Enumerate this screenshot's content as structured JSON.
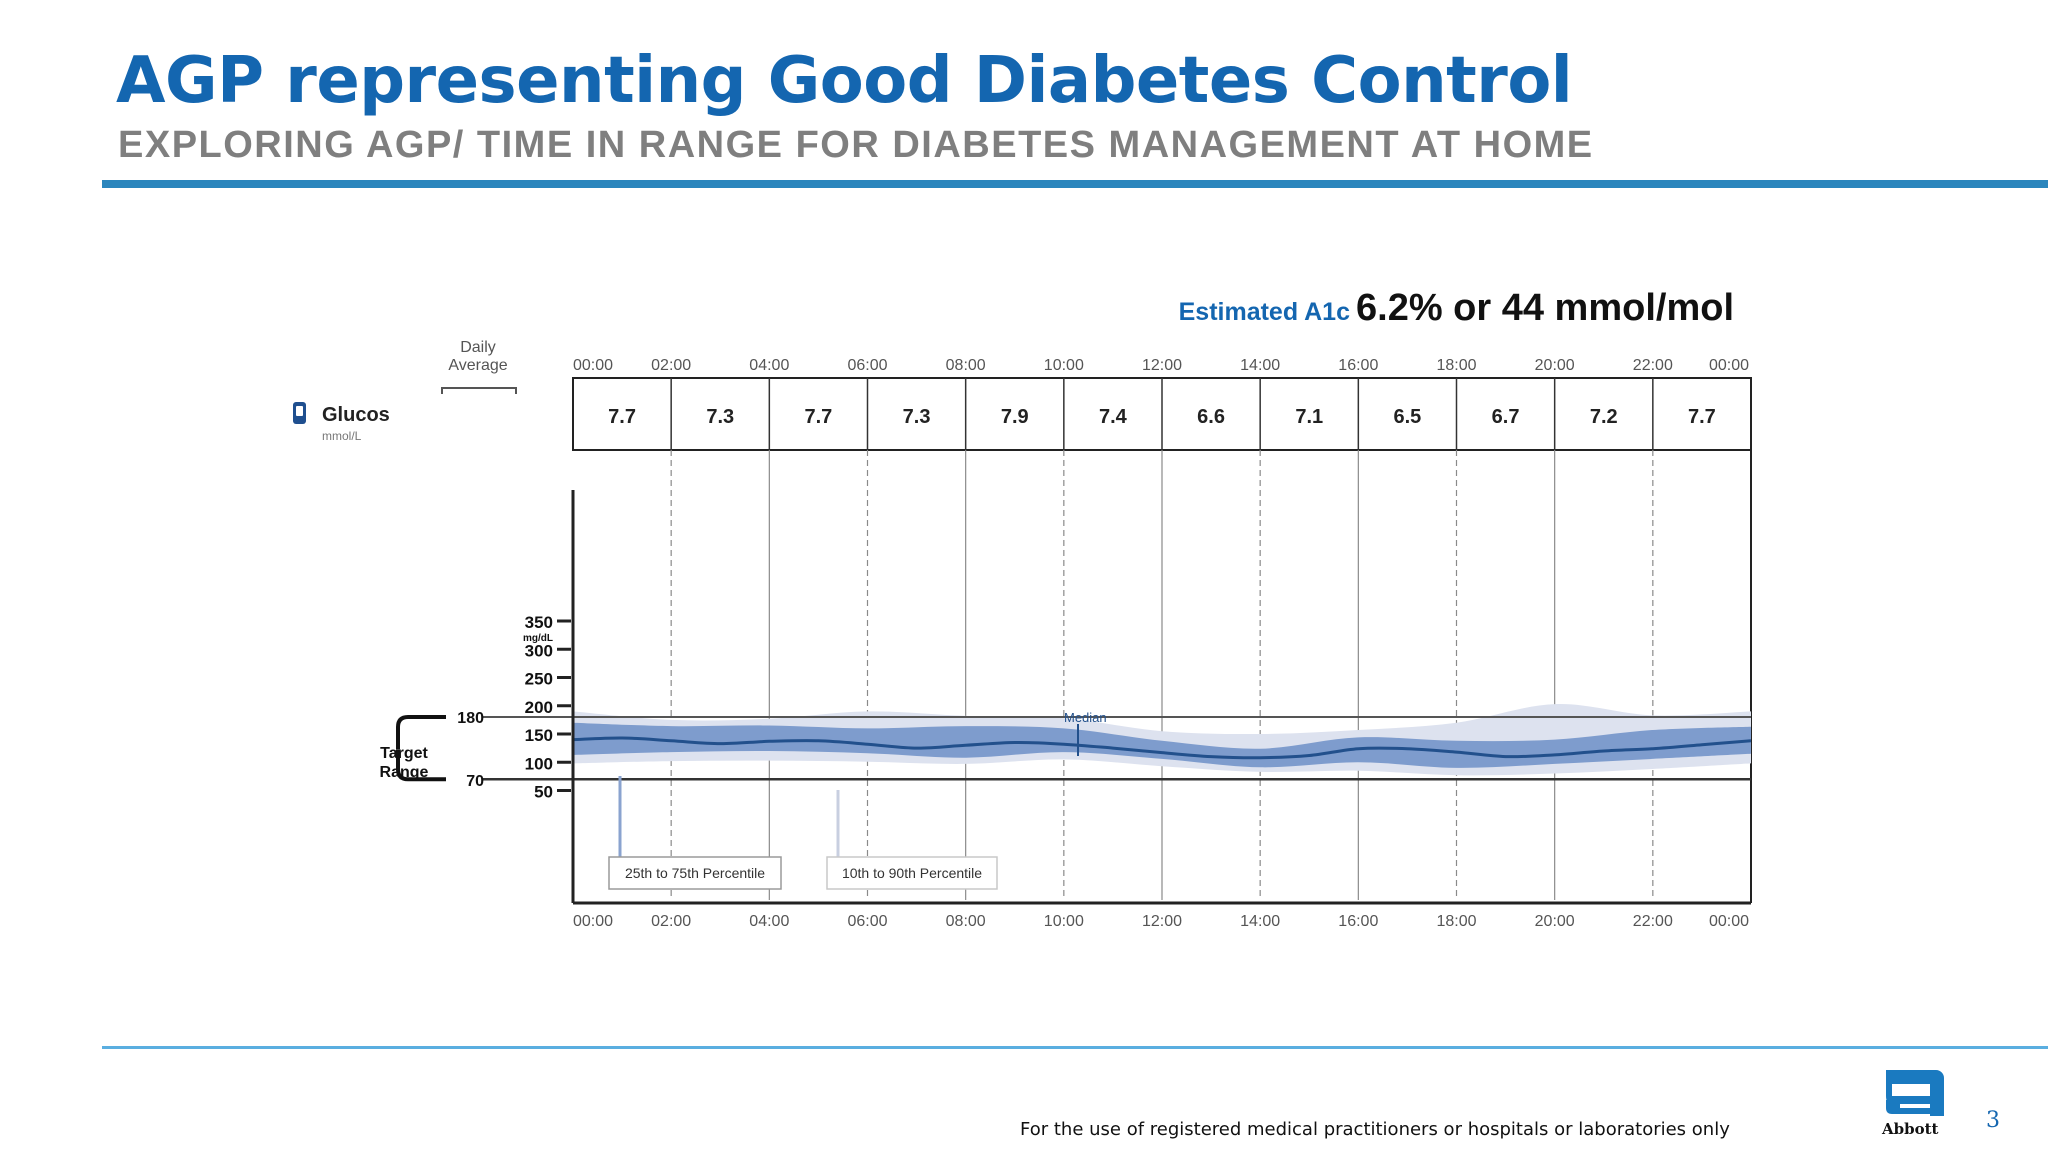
{
  "slide": {
    "title": "AGP representing Good Diabetes Control",
    "subtitle": "EXPLORING AGP/ TIME IN RANGE FOR DIABETES MANAGEMENT AT HOME",
    "footer": "For the use of registered medical practitioners or hospitals or laboratories only",
    "page_number": "3",
    "logo_text": "Abbott",
    "colors": {
      "title": "#1466b0",
      "rule": "#2b86bd",
      "band_inner": "#7e9ccd",
      "band_outer": "#dde2ef",
      "median": "#22508c"
    }
  },
  "chart_data": {
    "type": "area",
    "a1c_label": "Estimated A1c",
    "a1c_value": "6.2% or 44 mmol/mol",
    "daily_average_label": [
      "Daily",
      "Average"
    ],
    "glucose_label": "Glucos",
    "glucose_unit": "mmol/L",
    "time_labels": [
      "00:00",
      "02:00",
      "04:00",
      "06:00",
      "08:00",
      "10:00",
      "12:00",
      "14:00",
      "16:00",
      "18:00",
      "20:00",
      "22:00",
      "00:00"
    ],
    "hourly_averages": [
      "7.7",
      "7.3",
      "7.7",
      "7.3",
      "7.9",
      "7.4",
      "6.6",
      "7.1",
      "6.5",
      "6.7",
      "7.2",
      "7.7"
    ],
    "y_ticks": [
      "350",
      "300",
      "250",
      "200",
      "150",
      "100",
      "50"
    ],
    "y_unit": "mg/dL",
    "target_range": {
      "label": [
        "Target",
        "Range"
      ],
      "low": "70",
      "high": "180"
    },
    "ylim": [
      50,
      350
    ],
    "xlim": [
      0,
      24
    ],
    "series": [
      {
        "name": "Median",
        "x": [
          0,
          1,
          2,
          3,
          4,
          5,
          6,
          7,
          8,
          9,
          10,
          11,
          12,
          13,
          14,
          15,
          16,
          17,
          18,
          19,
          20,
          21,
          22,
          23,
          24
        ],
        "values": [
          140,
          143,
          138,
          133,
          137,
          138,
          132,
          125,
          130,
          135,
          132,
          125,
          117,
          110,
          108,
          112,
          124,
          124,
          118,
          110,
          113,
          120,
          124,
          131,
          138
        ]
      },
      {
        "name": "25th to 75th Percentile",
        "x": [
          0,
          2,
          4,
          6,
          8,
          10,
          12,
          14,
          16,
          18,
          20,
          22,
          24
        ],
        "low": [
          113,
          118,
          120,
          116,
          108,
          118,
          106,
          91,
          100,
          90,
          97,
          106,
          115
        ],
        "high": [
          170,
          164,
          165,
          160,
          164,
          160,
          138,
          124,
          144,
          138,
          140,
          157,
          163
        ]
      },
      {
        "name": "10th to 90th Percentile",
        "x": [
          0,
          2,
          4,
          6,
          8,
          10,
          12,
          14,
          16,
          18,
          20,
          22,
          24
        ],
        "low": [
          98,
          102,
          103,
          101,
          97,
          105,
          93,
          83,
          85,
          77,
          80,
          88,
          98
        ],
        "high": [
          190,
          175,
          177,
          190,
          182,
          178,
          155,
          150,
          157,
          170,
          203,
          183,
          190
        ]
      }
    ],
    "annotations": {
      "median": "Median",
      "iqr": "25th to 75th Percentile",
      "outer": "10th to 90th Percentile"
    }
  }
}
